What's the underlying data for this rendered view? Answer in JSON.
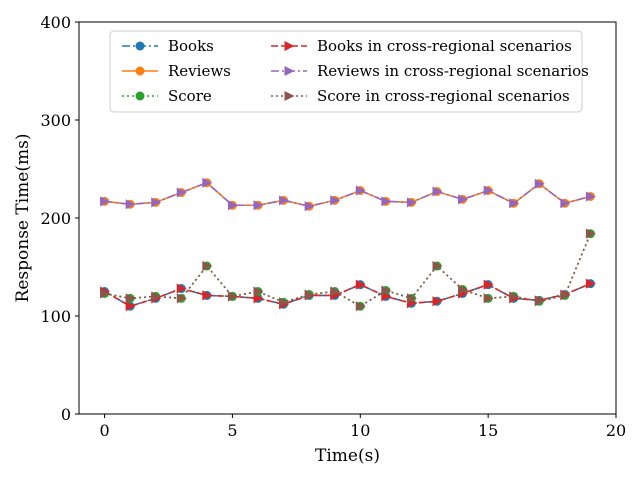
{
  "chart_data": {
    "type": "line",
    "xlabel": "Time(s)",
    "ylabel": "Response Time(ms)",
    "xlim": [
      -1,
      20
    ],
    "ylim": [
      0,
      400
    ],
    "xticks": [
      0,
      5,
      10,
      15,
      20
    ],
    "yticks": [
      0,
      100,
      200,
      300,
      400
    ],
    "x": [
      0,
      1,
      2,
      3,
      4,
      5,
      6,
      7,
      8,
      9,
      10,
      11,
      12,
      13,
      14,
      15,
      16,
      17,
      18,
      19
    ],
    "legend_position": "upper-center",
    "series": [
      {
        "name": "Books",
        "color": "#1f77b4",
        "line": "dashdot",
        "marker": "circle",
        "values": [
          125,
          110,
          118,
          128,
          121,
          120,
          118,
          112,
          121,
          121,
          132,
          120,
          113,
          115,
          123,
          132,
          118,
          116,
          122,
          133
        ]
      },
      {
        "name": "Reviews",
        "color": "#ff7f0e",
        "line": "solid",
        "marker": "circle",
        "values": [
          217,
          214,
          216,
          226,
          236,
          213,
          213,
          218,
          212,
          218,
          228,
          217,
          216,
          227,
          219,
          228,
          215,
          235,
          215,
          222
        ]
      },
      {
        "name": "Score",
        "color": "#2ca02c",
        "line": "dotted",
        "marker": "circle",
        "values": [
          123,
          118,
          120,
          118,
          151,
          120,
          125,
          114,
          122,
          125,
          110,
          126,
          118,
          151,
          127,
          118,
          120,
          115,
          121,
          184
        ]
      },
      {
        "name": "Books in cross-regional scenarios",
        "color": "#d62728",
        "line": "dashed",
        "marker": "triangle-right",
        "values": [
          125,
          110,
          118,
          128,
          121,
          120,
          118,
          112,
          121,
          121,
          132,
          120,
          113,
          115,
          123,
          132,
          118,
          116,
          122,
          133
        ]
      },
      {
        "name": "Reviews in cross-regional scenarios",
        "color": "#9467bd",
        "line": "dashdot",
        "marker": "triangle-right",
        "values": [
          217,
          214,
          216,
          226,
          236,
          213,
          213,
          218,
          212,
          218,
          228,
          217,
          216,
          227,
          219,
          228,
          215,
          235,
          215,
          222
        ]
      },
      {
        "name": "Score in cross-regional scenarios",
        "color": "#8c564b",
        "line": "dotted",
        "marker": "triangle-right",
        "values": [
          123,
          118,
          120,
          118,
          151,
          120,
          125,
          114,
          122,
          125,
          110,
          126,
          118,
          151,
          127,
          118,
          120,
          115,
          121,
          184
        ]
      }
    ]
  }
}
